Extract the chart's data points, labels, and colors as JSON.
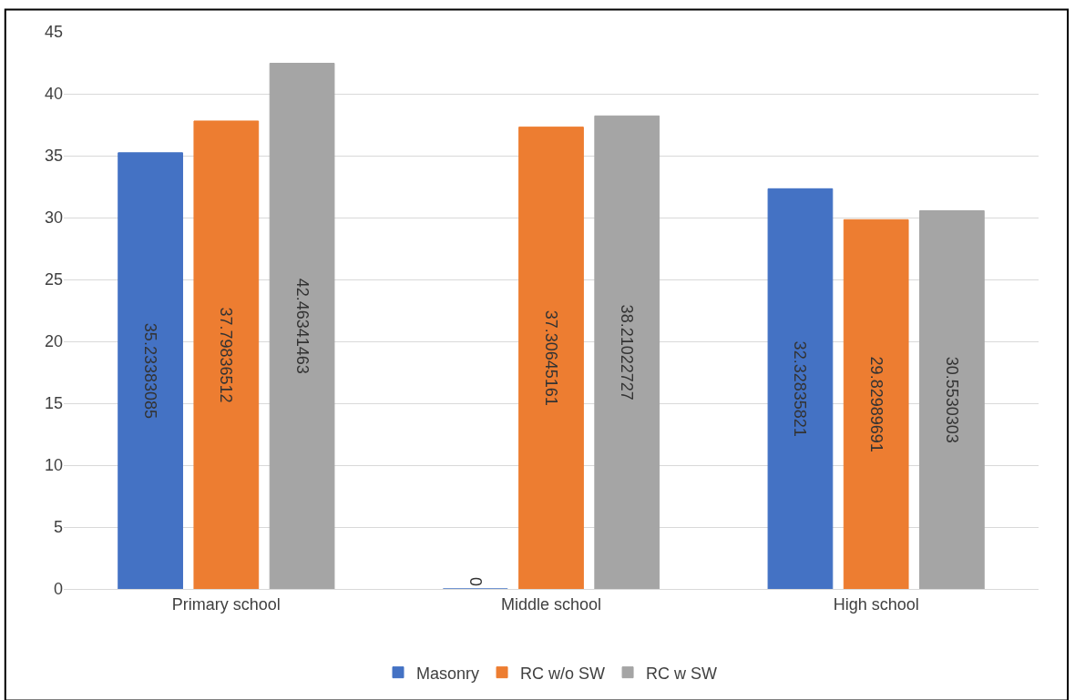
{
  "chart_data": {
    "type": "bar",
    "categories": [
      "Primary school",
      "Middle school",
      "High school"
    ],
    "series": [
      {
        "name": "Masonry",
        "color": "#4472c4",
        "values": [
          35.23383085,
          0,
          32.32835821
        ]
      },
      {
        "name": "RC w/o SW",
        "color": "#ed7d31",
        "values": [
          37.79836512,
          37.30645161,
          29.82989691
        ]
      },
      {
        "name": "RC w SW",
        "color": "#a5a5a5",
        "values": [
          42.46341463,
          38.21022727,
          30.5530303
        ]
      }
    ],
    "ylim": [
      0,
      45
    ],
    "yticks": [
      0,
      5,
      10,
      15,
      20,
      25,
      30,
      35,
      40,
      45
    ],
    "grid": "y",
    "legend": "bottom",
    "data_labels": true
  }
}
